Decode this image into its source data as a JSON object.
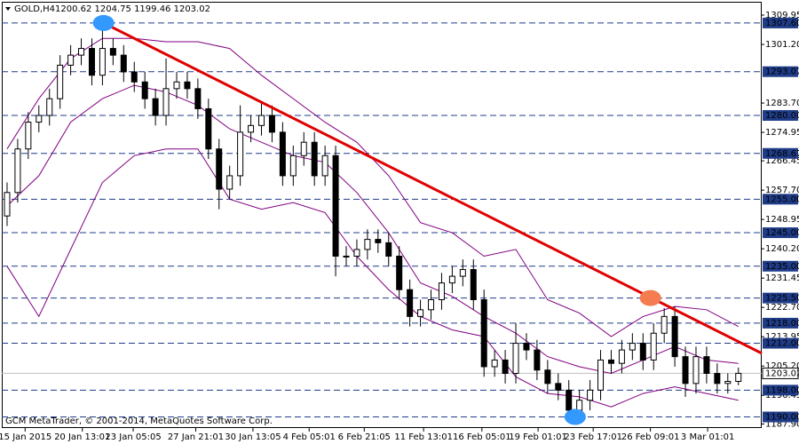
{
  "chart_data": {
    "type": "candlestick",
    "title": "GOLD,H4",
    "ohlc_label": "1200.62 1204.75 1199.46 1203.02",
    "footer": "GCM MetaTrader, © 2001-2014, MetaQuotes Software Corp.",
    "candle_color": "#000000",
    "open": [
      1250,
      1257,
      1270,
      1278,
      1280,
      1285,
      1295,
      1298,
      1300,
      1292,
      1300,
      1298,
      1293,
      1290,
      1285,
      1280,
      1288,
      1290,
      1288,
      1282,
      1270,
      1258,
      1262,
      1275,
      1277,
      1280,
      1275,
      1262,
      1268,
      1272,
      1262,
      1268,
      1238,
      1238,
      1240,
      1243,
      1242,
      1238,
      1228,
      1220,
      1222,
      1225,
      1230,
      1232,
      1234,
      1225,
      1205,
      1207,
      1203,
      1212,
      1210,
      1204,
      1200,
      1198,
      1192,
      1195,
      1198,
      1207,
      1206,
      1210,
      1212,
      1207,
      1215,
      1220,
      1208,
      1200,
      1208,
      1203,
      1200,
      1200.62
    ],
    "high": [
      1260,
      1273,
      1281,
      1283,
      1288,
      1298,
      1301,
      1303,
      1303,
      1307.6,
      1303,
      1301,
      1296,
      1293,
      1288,
      1297,
      1293,
      1293,
      1291,
      1285,
      1273,
      1265,
      1283,
      1280,
      1284,
      1283,
      1278,
      1271,
      1275,
      1275,
      1271,
      1271,
      1241,
      1243,
      1246,
      1246,
      1245,
      1241,
      1231,
      1225,
      1228,
      1233,
      1235,
      1237,
      1237,
      1228,
      1210,
      1210,
      1218,
      1215,
      1213,
      1207,
      1203,
      1201,
      1198,
      1201,
      1210,
      1210,
      1213,
      1215,
      1215,
      1218,
      1222.5,
      1223,
      1211,
      1211,
      1211,
      1206,
      1203,
      1204.75
    ],
    "low": [
      1247,
      1254,
      1267,
      1275,
      1277,
      1282,
      1292,
      1295,
      1289,
      1289,
      1295,
      1290,
      1287,
      1282,
      1277,
      1277,
      1285,
      1285,
      1279,
      1267,
      1252,
      1255,
      1259,
      1272,
      1274,
      1272,
      1259,
      1259,
      1265,
      1259,
      1259,
      1232,
      1235,
      1235,
      1237,
      1239,
      1235,
      1225,
      1217,
      1217,
      1219,
      1222,
      1227,
      1229,
      1222,
      1202,
      1202,
      1200,
      1200,
      1207,
      1201,
      1197,
      1195,
      1190,
      1191,
      1192,
      1195,
      1203,
      1203,
      1207,
      1204,
      1204,
      1212,
      1205,
      1196,
      1197,
      1200,
      1197,
      1197,
      1199.46
    ],
    "close": [
      1257,
      1270,
      1278,
      1280,
      1285,
      1295,
      1298,
      1300,
      1292,
      1300,
      1298,
      1293,
      1290,
      1285,
      1280,
      1288,
      1290,
      1288,
      1282,
      1270,
      1258,
      1262,
      1275,
      1277,
      1280,
      1275,
      1262,
      1268,
      1272,
      1262,
      1268,
      1238,
      1238,
      1240,
      1243,
      1242,
      1238,
      1228,
      1220,
      1222,
      1225,
      1230,
      1232,
      1234,
      1225,
      1205,
      1207,
      1203,
      1212,
      1210,
      1204,
      1200,
      1198,
      1192,
      1195,
      1198,
      1207,
      1206,
      1210,
      1212,
      1207,
      1215,
      1220,
      1208,
      1200,
      1208,
      1203,
      1200,
      1200.62,
      1203.02
    ],
    "xlim": [
      0,
      71.7
    ],
    "xticks": [
      {
        "value": 2.2,
        "label": "15 Jan 2015"
      },
      {
        "value": 7.6,
        "label": "20 Jan 13:01"
      },
      {
        "value": 12.4,
        "label": "23 Jan 05:05"
      },
      {
        "value": 18.3,
        "label": "27 Jan 21:01"
      },
      {
        "value": 23.7,
        "label": "30 Jan 13:05"
      },
      {
        "value": 29,
        "label": "4 Feb 05:01"
      },
      {
        "value": 34.2,
        "label": "6 Feb 21:05"
      },
      {
        "value": 39.8,
        "label": "11 Feb 13:01"
      },
      {
        "value": 45.3,
        "label": "16 Feb 05:01"
      },
      {
        "value": 50.6,
        "label": "19 Feb 01:01"
      },
      {
        "value": 55.8,
        "label": "23 Feb 17:01"
      },
      {
        "value": 61.2,
        "label": "26 Feb 09:01"
      },
      {
        "value": 66.6,
        "label": "3 Mar 01:01"
      }
    ],
    "ylim": [
      1186.7,
      1313.4
    ],
    "yticks": [
      {
        "value": 1309.95,
        "label": "1309.95"
      },
      {
        "value": 1301.2,
        "label": "1301.20"
      },
      {
        "value": 1283.7,
        "label": "1283.70"
      },
      {
        "value": 1274.95,
        "label": "1274.95"
      },
      {
        "value": 1266.45,
        "label": "1266.45"
      },
      {
        "value": 1257.7,
        "label": "1257.70"
      },
      {
        "value": 1248.95,
        "label": "1248.95"
      },
      {
        "value": 1240.2,
        "label": "1240.20"
      },
      {
        "value": 1231.45,
        "label": "1231.45"
      },
      {
        "value": 1222.7,
        "label": "1222.70"
      },
      {
        "value": 1213.95,
        "label": "1213.95"
      },
      {
        "value": 1205.2,
        "label": "1205.20"
      },
      {
        "value": 1196.45,
        "label": "1196.45"
      },
      {
        "value": 1187.9,
        "label": "1187.90"
      }
    ],
    "bands": {
      "color": "#800080",
      "x": [
        0.5,
        3.5,
        6.5,
        9.5,
        12.5,
        15.5,
        18.5,
        21.5,
        24.5,
        27.5,
        30.5,
        33.5,
        36.5,
        39.5,
        42.5,
        45.5,
        48.5,
        51.5,
        54.5,
        57.5,
        60.5,
        63.5,
        66.5,
        69.5
      ],
      "upper": [
        1270,
        1285,
        1297,
        1303,
        1303,
        1302,
        1302,
        1300,
        1292,
        1285,
        1278,
        1272,
        1262,
        1248,
        1245,
        1238,
        1240,
        1225,
        1221,
        1214,
        1220,
        1223,
        1222,
        1217
      ],
      "middle": [
        1253,
        1262,
        1278,
        1285,
        1289,
        1287,
        1283,
        1276,
        1272,
        1268,
        1266,
        1257,
        1245,
        1230,
        1226,
        1220,
        1215,
        1208,
        1205,
        1203,
        1207,
        1211,
        1207,
        1206
      ],
      "lower": [
        1235,
        1220,
        1240,
        1260,
        1268,
        1270,
        1270,
        1255,
        1252,
        1254,
        1251,
        1238,
        1228,
        1220,
        1216,
        1214,
        1202,
        1197,
        1196,
        1193,
        1197,
        1199,
        1197,
        1195
      ]
    },
    "level_color": "#1f3c88",
    "levels": [
      {
        "value": 1307.6,
        "label": "1307.60"
      },
      {
        "value": 1293.07,
        "label": "1293.07"
      },
      {
        "value": 1280,
        "label": "1280.00"
      },
      {
        "value": 1268.67,
        "label": "1268.67"
      },
      {
        "value": 1255,
        "label": "1255.00"
      },
      {
        "value": 1245,
        "label": "1245.00"
      },
      {
        "value": 1235,
        "label": "1235.00"
      },
      {
        "value": 1225.5,
        "label": "1225.50"
      },
      {
        "value": 1218,
        "label": "1218.00"
      },
      {
        "value": 1212,
        "label": "1212.00"
      },
      {
        "value": 1198,
        "label": "1198.00"
      },
      {
        "value": 1190,
        "label": "1190.00"
      }
    ],
    "current_price": {
      "value": 1203.02,
      "label": "1203.02"
    },
    "trendline": {
      "color": "#e00000",
      "x": [
        9.6,
        71.7
      ],
      "y": [
        1307.6,
        1209
      ]
    },
    "markers": [
      {
        "x": 9.6,
        "y": 1307.6,
        "color": "#3399ff"
      },
      {
        "x": 54.1,
        "y": 1190,
        "color": "#3399ff"
      },
      {
        "x": 61.2,
        "y": 1225.5,
        "color": "#f47c50"
      }
    ]
  }
}
